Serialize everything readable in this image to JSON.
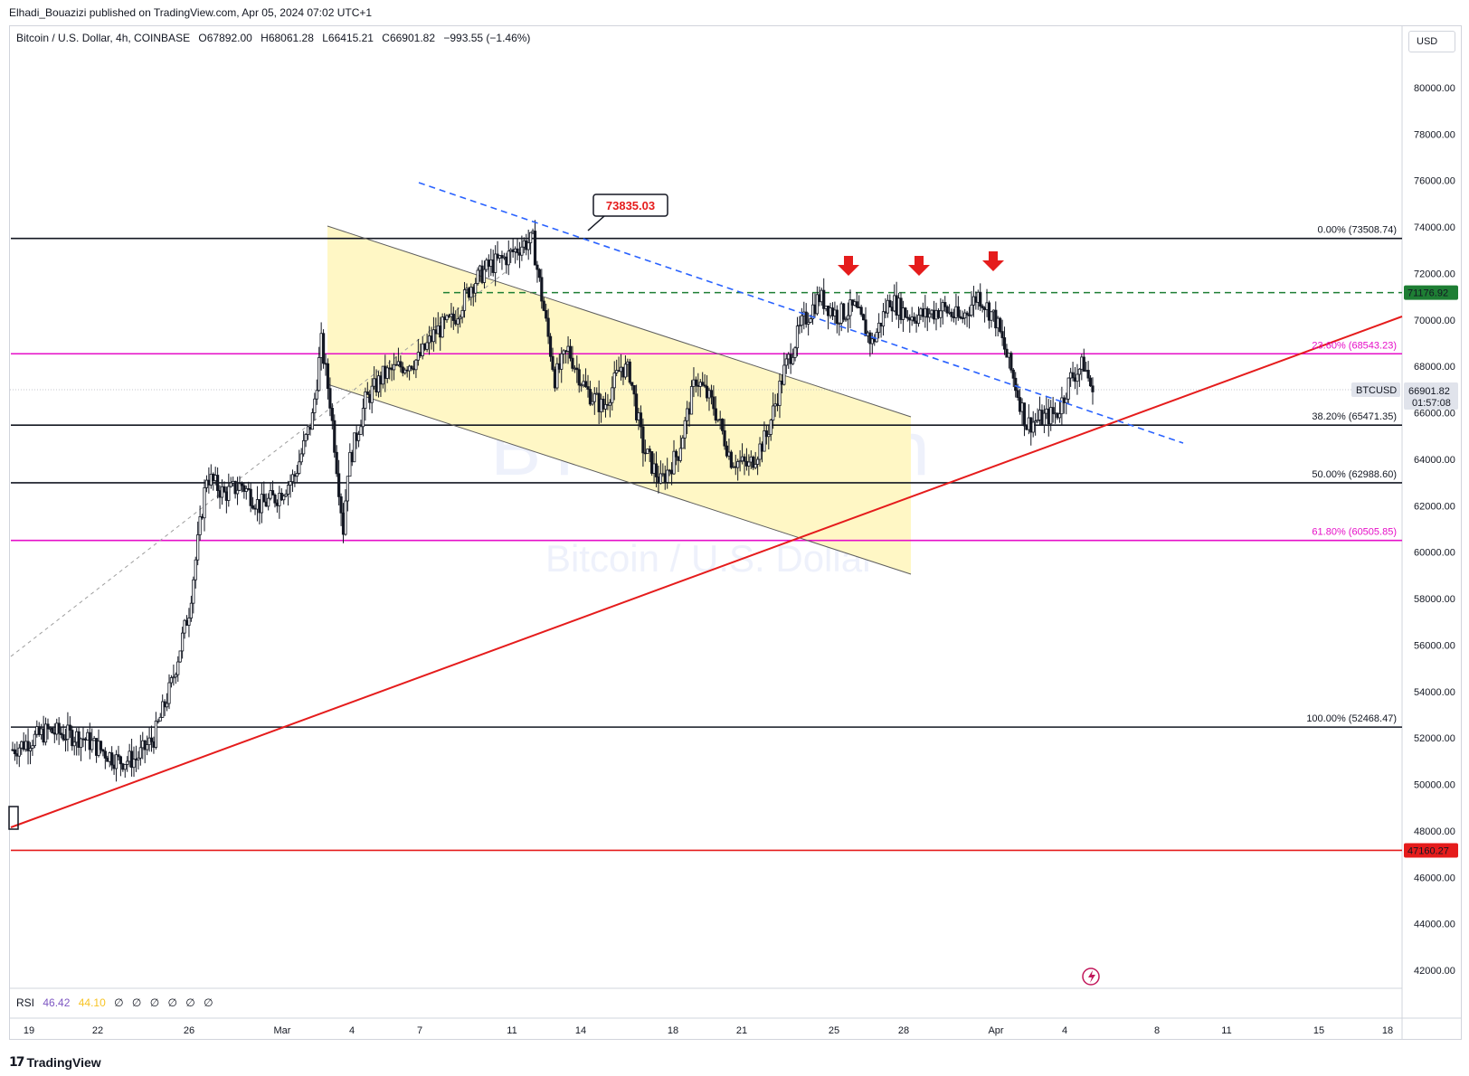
{
  "header": {
    "published": "Elhadi_Bouazizi published on TradingView.com, Apr 05, 2024 07:02 UTC+1"
  },
  "symbol_bar": {
    "name": "Bitcoin / U.S. Dollar, 4h, COINBASE",
    "open": "O67892.00",
    "high": "H68061.28",
    "low": "L66415.21",
    "close": "C66901.82",
    "change": "−993.55 (−1.46%)"
  },
  "currency": "USD",
  "watermark": {
    "line1": "BTCUSD, 4h",
    "line2": "Bitcoin / U.S. Dollar"
  },
  "price_axis": {
    "ticks": [
      "80000.00",
      "78000.00",
      "76000.00",
      "74000.00",
      "72000.00",
      "70000.00",
      "68000.00",
      "66000.00",
      "64000.00",
      "62000.00",
      "60000.00",
      "58000.00",
      "56000.00",
      "54000.00",
      "52000.00",
      "50000.00",
      "48000.00",
      "46000.00",
      "44000.00",
      "42000.00"
    ],
    "tick_values": [
      80000,
      78000,
      76000,
      74000,
      72000,
      70000,
      68000,
      66000,
      64000,
      62000,
      60000,
      58000,
      56000,
      54000,
      52000,
      50000,
      48000,
      46000,
      44000,
      42000
    ],
    "range": [
      40800,
      83000
    ]
  },
  "time_axis": {
    "labels": [
      "19",
      "22",
      "26",
      "Mar",
      "4",
      "7",
      "11",
      "14",
      "18",
      "21",
      "25",
      "28",
      "Apr",
      "4",
      "8",
      "11",
      "15",
      "18"
    ]
  },
  "badges": {
    "resistance": {
      "text": "71176.92",
      "color": "#1e7e34"
    },
    "symbol": "BTCUSD",
    "last_price": "66901.82",
    "countdown": "01:57:08",
    "support": {
      "text": "47160.27",
      "color": "#e51c1c"
    }
  },
  "fib_levels": [
    {
      "label": "0.00% (73508.74)",
      "price": 73508.74,
      "color": "#131722"
    },
    {
      "label": "23.60% (68543.23)",
      "price": 68543.23,
      "color": "#e60fc8"
    },
    {
      "label": "38.20% (65471.35)",
      "price": 65471.35,
      "color": "#131722"
    },
    {
      "label": "50.00% (62988.60)",
      "price": 62988.6,
      "color": "#131722"
    },
    {
      "label": "61.80% (60505.85)",
      "price": 60505.85,
      "color": "#e60fc8"
    },
    {
      "label": "100.00% (52468.47)",
      "price": 52468.47,
      "color": "#131722"
    }
  ],
  "high_callout": "73835.03",
  "rsi": {
    "label": "RSI",
    "value1": "46.42",
    "value2": "44.10",
    "value1_color": "#7e57c2",
    "value2_color": "#f7c325",
    "circles": [
      "∅",
      "∅",
      "∅",
      "∅",
      "∅",
      "∅"
    ]
  },
  "brand": "TradingView",
  "chart_data": {
    "type": "candlestick",
    "symbol": "BTCUSD",
    "timeframe": "4h",
    "exchange": "COINBASE",
    "ylim": [
      40800,
      83000
    ],
    "resistance_level": 71176.92,
    "support_level": 47160.27,
    "swing_high": 73835.03,
    "last_close": 66901.82,
    "anchors": [
      [
        0,
        51500
      ],
      [
        16,
        52300
      ],
      [
        32,
        52000
      ],
      [
        48,
        51000
      ],
      [
        56,
        51100
      ],
      [
        64,
        52000
      ],
      [
        72,
        54300
      ],
      [
        80,
        57500
      ],
      [
        88,
        63300
      ],
      [
        96,
        62500
      ],
      [
        104,
        62900
      ],
      [
        112,
        62000
      ],
      [
        120,
        62400
      ],
      [
        128,
        63300
      ],
      [
        136,
        65800
      ],
      [
        140,
        69000
      ],
      [
        144,
        66500
      ],
      [
        150,
        61000
      ],
      [
        152,
        63600
      ],
      [
        160,
        66500
      ],
      [
        168,
        67600
      ],
      [
        176,
        68000
      ],
      [
        184,
        68300
      ],
      [
        192,
        69500
      ],
      [
        200,
        70000
      ],
      [
        208,
        71500
      ],
      [
        216,
        72300
      ],
      [
        224,
        72700
      ],
      [
        232,
        73300
      ],
      [
        236,
        73400
      ],
      [
        240,
        71000
      ],
      [
        246,
        67500
      ],
      [
        252,
        68700
      ],
      [
        260,
        67000
      ],
      [
        268,
        66200
      ],
      [
        276,
        68000
      ],
      [
        280,
        67700
      ],
      [
        286,
        64500
      ],
      [
        294,
        63000
      ],
      [
        302,
        64300
      ],
      [
        310,
        67500
      ],
      [
        318,
        66300
      ],
      [
        326,
        64000
      ],
      [
        334,
        63700
      ],
      [
        342,
        65000
      ],
      [
        350,
        67800
      ],
      [
        358,
        69800
      ],
      [
        366,
        71000
      ],
      [
        374,
        70200
      ],
      [
        382,
        70500
      ],
      [
        390,
        69000
      ],
      [
        398,
        70900
      ],
      [
        406,
        70200
      ],
      [
        414,
        70200
      ],
      [
        422,
        70500
      ],
      [
        430,
        70000
      ],
      [
        438,
        71100
      ],
      [
        446,
        70000
      ],
      [
        454,
        67500
      ],
      [
        460,
        65500
      ],
      [
        468,
        65800
      ],
      [
        474,
        66000
      ],
      [
        480,
        67500
      ],
      [
        486,
        68100
      ],
      [
        490,
        66901
      ]
    ]
  }
}
